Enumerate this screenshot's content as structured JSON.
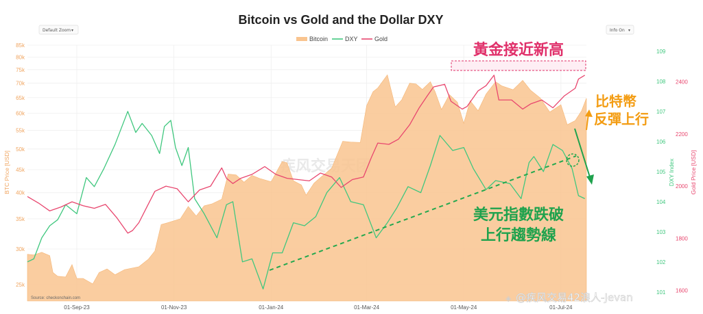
{
  "toolbar": {
    "zoom_select": "Default Zoom",
    "info_select": "Info On"
  },
  "chart_data": {
    "type": "line",
    "title": "Bitcoin vs Gold and the Dollar DXY",
    "legend": {
      "position": "top-center",
      "items": [
        "Bitcoin",
        "DXY",
        "Gold"
      ]
    },
    "colors": {
      "Bitcoin": "#f9c48f",
      "DXY": "#3fc77e",
      "Gold": "#e8466e",
      "ann_gold": "#e0306a",
      "ann_btc": "#f39c12",
      "ann_dxy": "#1fa24d",
      "dashed_trend": "#23a84e"
    },
    "axes": {
      "y_left": {
        "label": "BTC Price [USD]",
        "scale": "log",
        "range": [
          23000,
          85000
        ],
        "ticks": [
          "25k",
          "30k",
          "35k",
          "40k",
          "45k",
          "50k",
          "55k",
          "60k",
          "65k",
          "70k",
          "75k",
          "80k",
          "85k"
        ]
      },
      "y_dxy": {
        "label": "DXY Index",
        "range": [
          100.7,
          109.2
        ],
        "ticks": [
          "101",
          "102",
          "103",
          "104",
          "105",
          "106",
          "107",
          "108",
          "109"
        ]
      },
      "y_gold": {
        "label": "Gold Price [USD]",
        "range": [
          1560,
          2540
        ],
        "ticks": [
          "1600",
          "1800",
          "2000",
          "2200",
          "2400"
        ]
      },
      "x": {
        "ticks": [
          "01-Sep-23",
          "01-Nov-23",
          "01-Jan-24",
          "01-Mar-24",
          "01-May-24",
          "01-Jul-24"
        ],
        "range": [
          "2023-08-01",
          "2024-07-17"
        ]
      }
    },
    "series": [
      {
        "name": "Bitcoin",
        "type": "area",
        "axis": "y_left",
        "x": [
          "2023-08-01",
          "2023-08-05",
          "2023-08-10",
          "2023-08-15",
          "2023-08-17",
          "2023-08-20",
          "2023-08-25",
          "2023-08-29",
          "2023-09-01",
          "2023-09-05",
          "2023-09-11",
          "2023-09-15",
          "2023-09-20",
          "2023-09-25",
          "2023-10-01",
          "2023-10-10",
          "2023-10-16",
          "2023-10-20",
          "2023-10-24",
          "2023-10-28",
          "2023-11-05",
          "2023-11-10",
          "2023-11-15",
          "2023-11-20",
          "2023-11-25",
          "2023-12-01",
          "2023-12-05",
          "2023-12-10",
          "2023-12-15",
          "2023-12-20",
          "2023-12-25",
          "2024-01-01",
          "2024-01-08",
          "2024-01-11",
          "2024-01-15",
          "2024-01-20",
          "2024-01-23",
          "2024-01-28",
          "2024-02-01",
          "2024-02-08",
          "2024-02-15",
          "2024-02-20",
          "2024-02-26",
          "2024-03-01",
          "2024-03-05",
          "2024-03-08",
          "2024-03-14",
          "2024-03-19",
          "2024-03-23",
          "2024-03-28",
          "2024-04-01",
          "2024-04-05",
          "2024-04-10",
          "2024-04-13",
          "2024-04-17",
          "2024-04-22",
          "2024-04-27",
          "2024-05-01",
          "2024-05-05",
          "2024-05-10",
          "2024-05-15",
          "2024-05-21",
          "2024-05-25",
          "2024-06-01",
          "2024-06-07",
          "2024-06-12",
          "2024-06-18",
          "2024-06-24",
          "2024-07-01",
          "2024-07-05",
          "2024-07-10",
          "2024-07-14",
          "2024-07-17"
        ],
        "values": [
          29200,
          29100,
          29500,
          29000,
          26600,
          26100,
          26000,
          27700,
          25800,
          25800,
          25100,
          26600,
          27100,
          26300,
          27000,
          27400,
          28500,
          29700,
          34000,
          34300,
          35000,
          37300,
          35500,
          37400,
          37800,
          38700,
          44000,
          43800,
          42200,
          43700,
          43000,
          42300,
          46900,
          46600,
          42500,
          41600,
          39500,
          42000,
          43200,
          45300,
          52000,
          51800,
          51700,
          62400,
          67000,
          68300,
          73000,
          62000,
          64300,
          70000,
          69700,
          67800,
          70500,
          67000,
          61200,
          66000,
          63500,
          57000,
          64000,
          60800,
          66200,
          70500,
          69000,
          67700,
          71000,
          67500,
          64900,
          60400,
          62700,
          56600,
          57800,
          60800,
          64800
        ]
      },
      {
        "name": "DXY",
        "type": "line",
        "axis": "y_dxy",
        "x": [
          "2023-08-01",
          "2023-08-05",
          "2023-08-10",
          "2023-08-15",
          "2023-08-20",
          "2023-08-25",
          "2023-09-01",
          "2023-09-07",
          "2023-09-12",
          "2023-09-18",
          "2023-09-25",
          "2023-10-03",
          "2023-10-08",
          "2023-10-12",
          "2023-10-18",
          "2023-10-23",
          "2023-10-26",
          "2023-10-30",
          "2023-11-02",
          "2023-11-06",
          "2023-11-10",
          "2023-11-14",
          "2023-11-20",
          "2023-11-28",
          "2023-12-04",
          "2023-12-08",
          "2023-12-14",
          "2023-12-20",
          "2023-12-27",
          "2024-01-02",
          "2024-01-08",
          "2024-01-15",
          "2024-01-22",
          "2024-01-29",
          "2024-02-05",
          "2024-02-13",
          "2024-02-20",
          "2024-02-28",
          "2024-03-07",
          "2024-03-14",
          "2024-03-20",
          "2024-03-27",
          "2024-04-04",
          "2024-04-10",
          "2024-04-16",
          "2024-04-24",
          "2024-05-01",
          "2024-05-07",
          "2024-05-15",
          "2024-05-21",
          "2024-05-30",
          "2024-06-06",
          "2024-06-11",
          "2024-06-14",
          "2024-06-20",
          "2024-06-26",
          "2024-07-02",
          "2024-07-08",
          "2024-07-12",
          "2024-07-16"
        ],
        "values": [
          102.0,
          102.1,
          102.8,
          103.2,
          103.4,
          103.9,
          103.6,
          104.8,
          104.5,
          105.1,
          105.9,
          107.0,
          106.3,
          106.6,
          106.2,
          105.6,
          106.5,
          106.7,
          105.8,
          105.2,
          105.8,
          104.1,
          103.6,
          102.8,
          103.9,
          104.0,
          102.0,
          102.1,
          101.1,
          102.3,
          102.3,
          103.3,
          103.2,
          103.5,
          104.3,
          104.8,
          104.0,
          103.9,
          102.8,
          103.3,
          103.8,
          104.5,
          104.3,
          105.2,
          106.2,
          105.7,
          105.8,
          105.1,
          104.4,
          104.7,
          104.6,
          104.1,
          105.3,
          105.5,
          105.0,
          105.9,
          105.7,
          105.1,
          104.2,
          104.1
        ]
      },
      {
        "name": "Gold",
        "type": "line",
        "axis": "y_gold",
        "x": [
          "2023-08-01",
          "2023-08-08",
          "2023-08-15",
          "2023-08-22",
          "2023-08-29",
          "2023-09-05",
          "2023-09-12",
          "2023-09-19",
          "2023-09-26",
          "2023-10-03",
          "2023-10-06",
          "2023-10-10",
          "2023-10-15",
          "2023-10-20",
          "2023-10-27",
          "2023-11-03",
          "2023-11-10",
          "2023-11-17",
          "2023-11-24",
          "2023-12-01",
          "2023-12-04",
          "2023-12-08",
          "2023-12-13",
          "2023-12-20",
          "2023-12-28",
          "2024-01-04",
          "2024-01-11",
          "2024-01-18",
          "2024-01-25",
          "2024-02-01",
          "2024-02-08",
          "2024-02-14",
          "2024-02-21",
          "2024-02-28",
          "2024-03-04",
          "2024-03-08",
          "2024-03-15",
          "2024-03-21",
          "2024-03-28",
          "2024-04-03",
          "2024-04-08",
          "2024-04-12",
          "2024-04-19",
          "2024-04-23",
          "2024-04-30",
          "2024-05-03",
          "2024-05-10",
          "2024-05-15",
          "2024-05-20",
          "2024-05-23",
          "2024-05-31",
          "2024-06-07",
          "2024-06-12",
          "2024-06-19",
          "2024-06-26",
          "2024-07-03",
          "2024-07-10",
          "2024-07-12",
          "2024-07-16"
        ],
        "values": [
          1960,
          1935,
          1905,
          1920,
          1940,
          1925,
          1915,
          1930,
          1880,
          1820,
          1830,
          1860,
          1920,
          1980,
          2000,
          1990,
          1940,
          1985,
          2000,
          2070,
          2030,
          2010,
          2030,
          2045,
          2075,
          2045,
          2030,
          2025,
          2020,
          2050,
          2035,
          1995,
          2025,
          2035,
          2110,
          2165,
          2160,
          2180,
          2235,
          2300,
          2345,
          2380,
          2390,
          2325,
          2295,
          2305,
          2365,
          2385,
          2425,
          2330,
          2330,
          2295,
          2315,
          2330,
          2300,
          2345,
          2375,
          2410,
          2425
        ]
      }
    ],
    "annotations": [
      {
        "text": "黃金接近新高",
        "color": "#e0306a"
      },
      {
        "text_lines": [
          "比特幣",
          "反彈上行"
        ],
        "color": "#f39c12"
      },
      {
        "text_lines": [
          "美元指數跌破",
          "上行趨勢線"
        ],
        "color": "#1fa24d"
      }
    ],
    "source": "Source: checkonchain.com",
    "watermark_text": "疾风交易天团",
    "credit": "@疾风交易42浪人-Jevan",
    "grid": true
  }
}
